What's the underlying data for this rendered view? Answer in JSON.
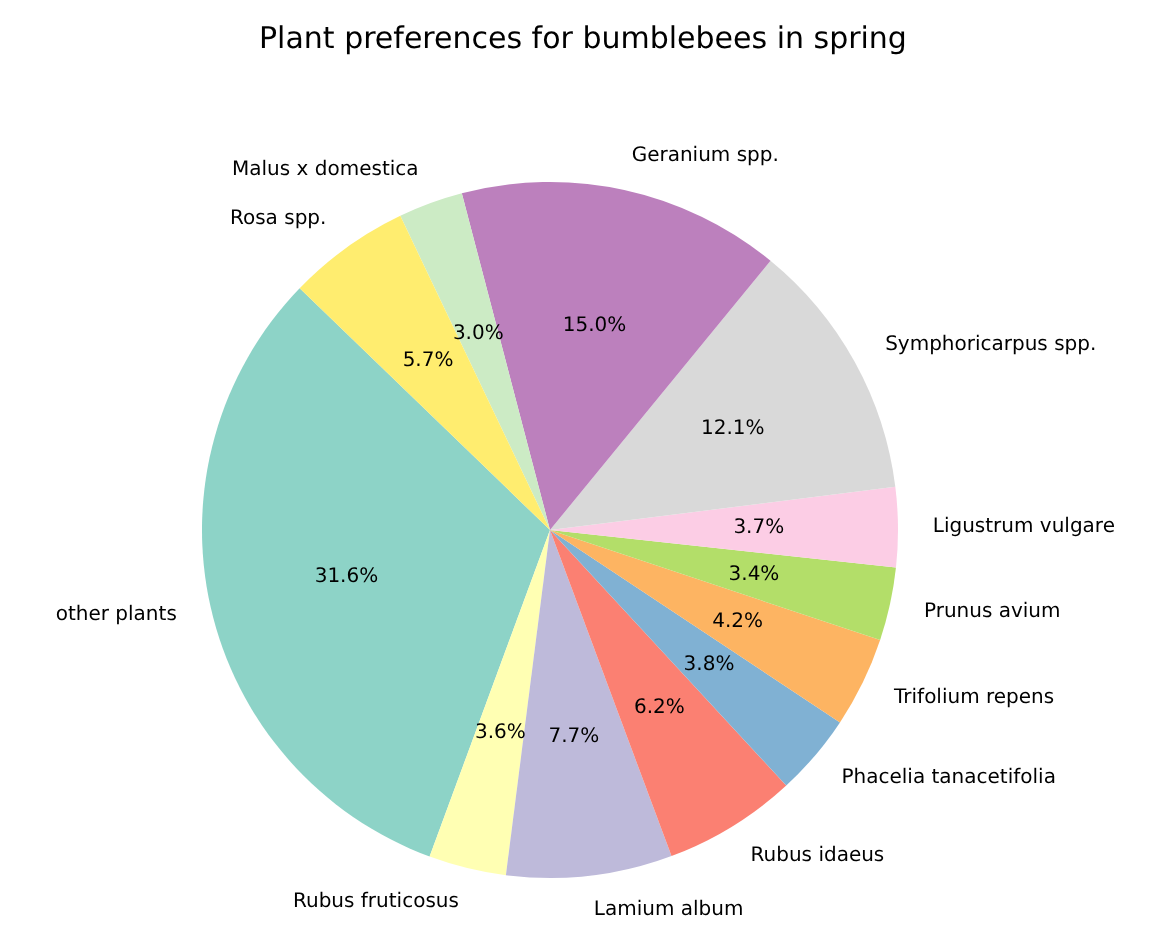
{
  "chart_data": {
    "type": "pie",
    "title": "Plant preferences for bumblebees in spring",
    "categories": [
      "other plants",
      "Rubus fruticosus",
      "Lamium album",
      "Rubus idaeus",
      "Phacelia tanacetifolia",
      "Trifolium repens",
      "Prunus avium",
      "Ligustrum vulgare",
      "Symphoricarpus spp.",
      "Geranium spp.",
      "Malus x domestica",
      "Rosa spp."
    ],
    "values": [
      31.6,
      3.6,
      7.7,
      6.2,
      3.8,
      4.2,
      3.4,
      3.7,
      12.1,
      15.0,
      3.0,
      5.7
    ],
    "value_labels": [
      "31.6%",
      "3.6%",
      "7.7%",
      "6.2%",
      "3.8%",
      "4.2%",
      "3.4%",
      "3.7%",
      "12.1%",
      "15.0%",
      "3.0%",
      "5.7%"
    ],
    "colors": [
      "#8dd3c7",
      "#ffffb3",
      "#bebada",
      "#fb8072",
      "#80b1d3",
      "#fdb462",
      "#b3de69",
      "#fccde5",
      "#d9d9d9",
      "#bc80bd",
      "#ccebc5",
      "#ffed6f"
    ]
  }
}
